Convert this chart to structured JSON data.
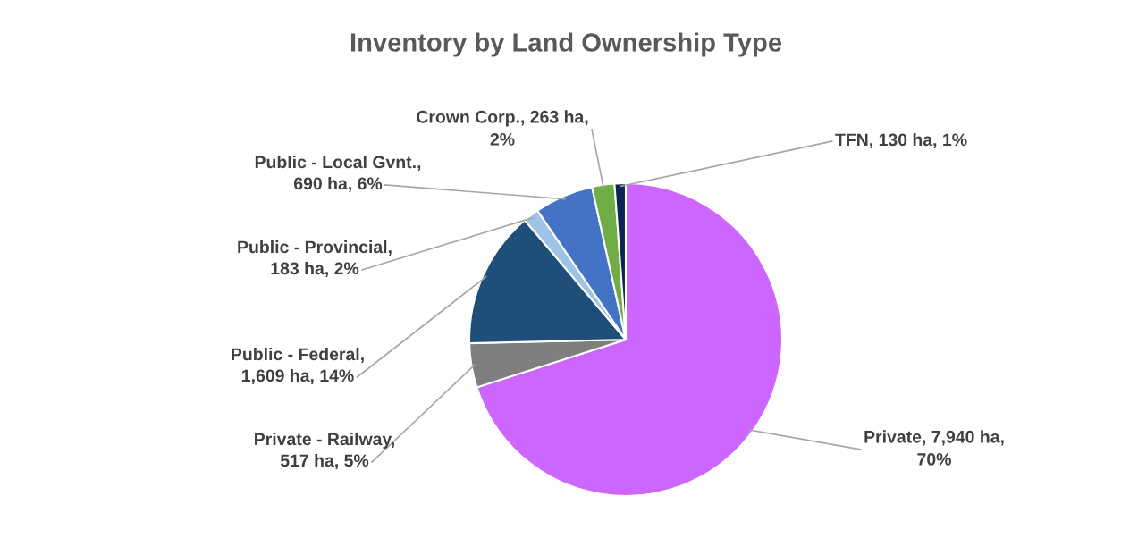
{
  "chart_data": {
    "type": "pie",
    "title": "Inventory by Land Ownership Type",
    "categories": [
      "Private",
      "Private - Railway",
      "Public - Federal",
      "Public - Provincial",
      "Public - Local Gvnt.",
      "Crown Corp.",
      "TFN"
    ],
    "values": [
      7940,
      517,
      1609,
      183,
      690,
      263,
      130
    ],
    "colors": [
      "#cc66ff",
      "#7f7f7f",
      "#1f4e79",
      "#9dc3e6",
      "#4472c4",
      "#70ad47",
      "#0b2550"
    ],
    "value_labels": [
      "7,940 ha,\n70%",
      ",\n517 ha, 5%",
      ",\n1,609 ha, 14%",
      ",\n183 ha, 2%",
      ",\n690 ha, 6%",
      "263 ha,\n2%",
      "130 ha, 1%"
    ],
    "legend": false
  }
}
